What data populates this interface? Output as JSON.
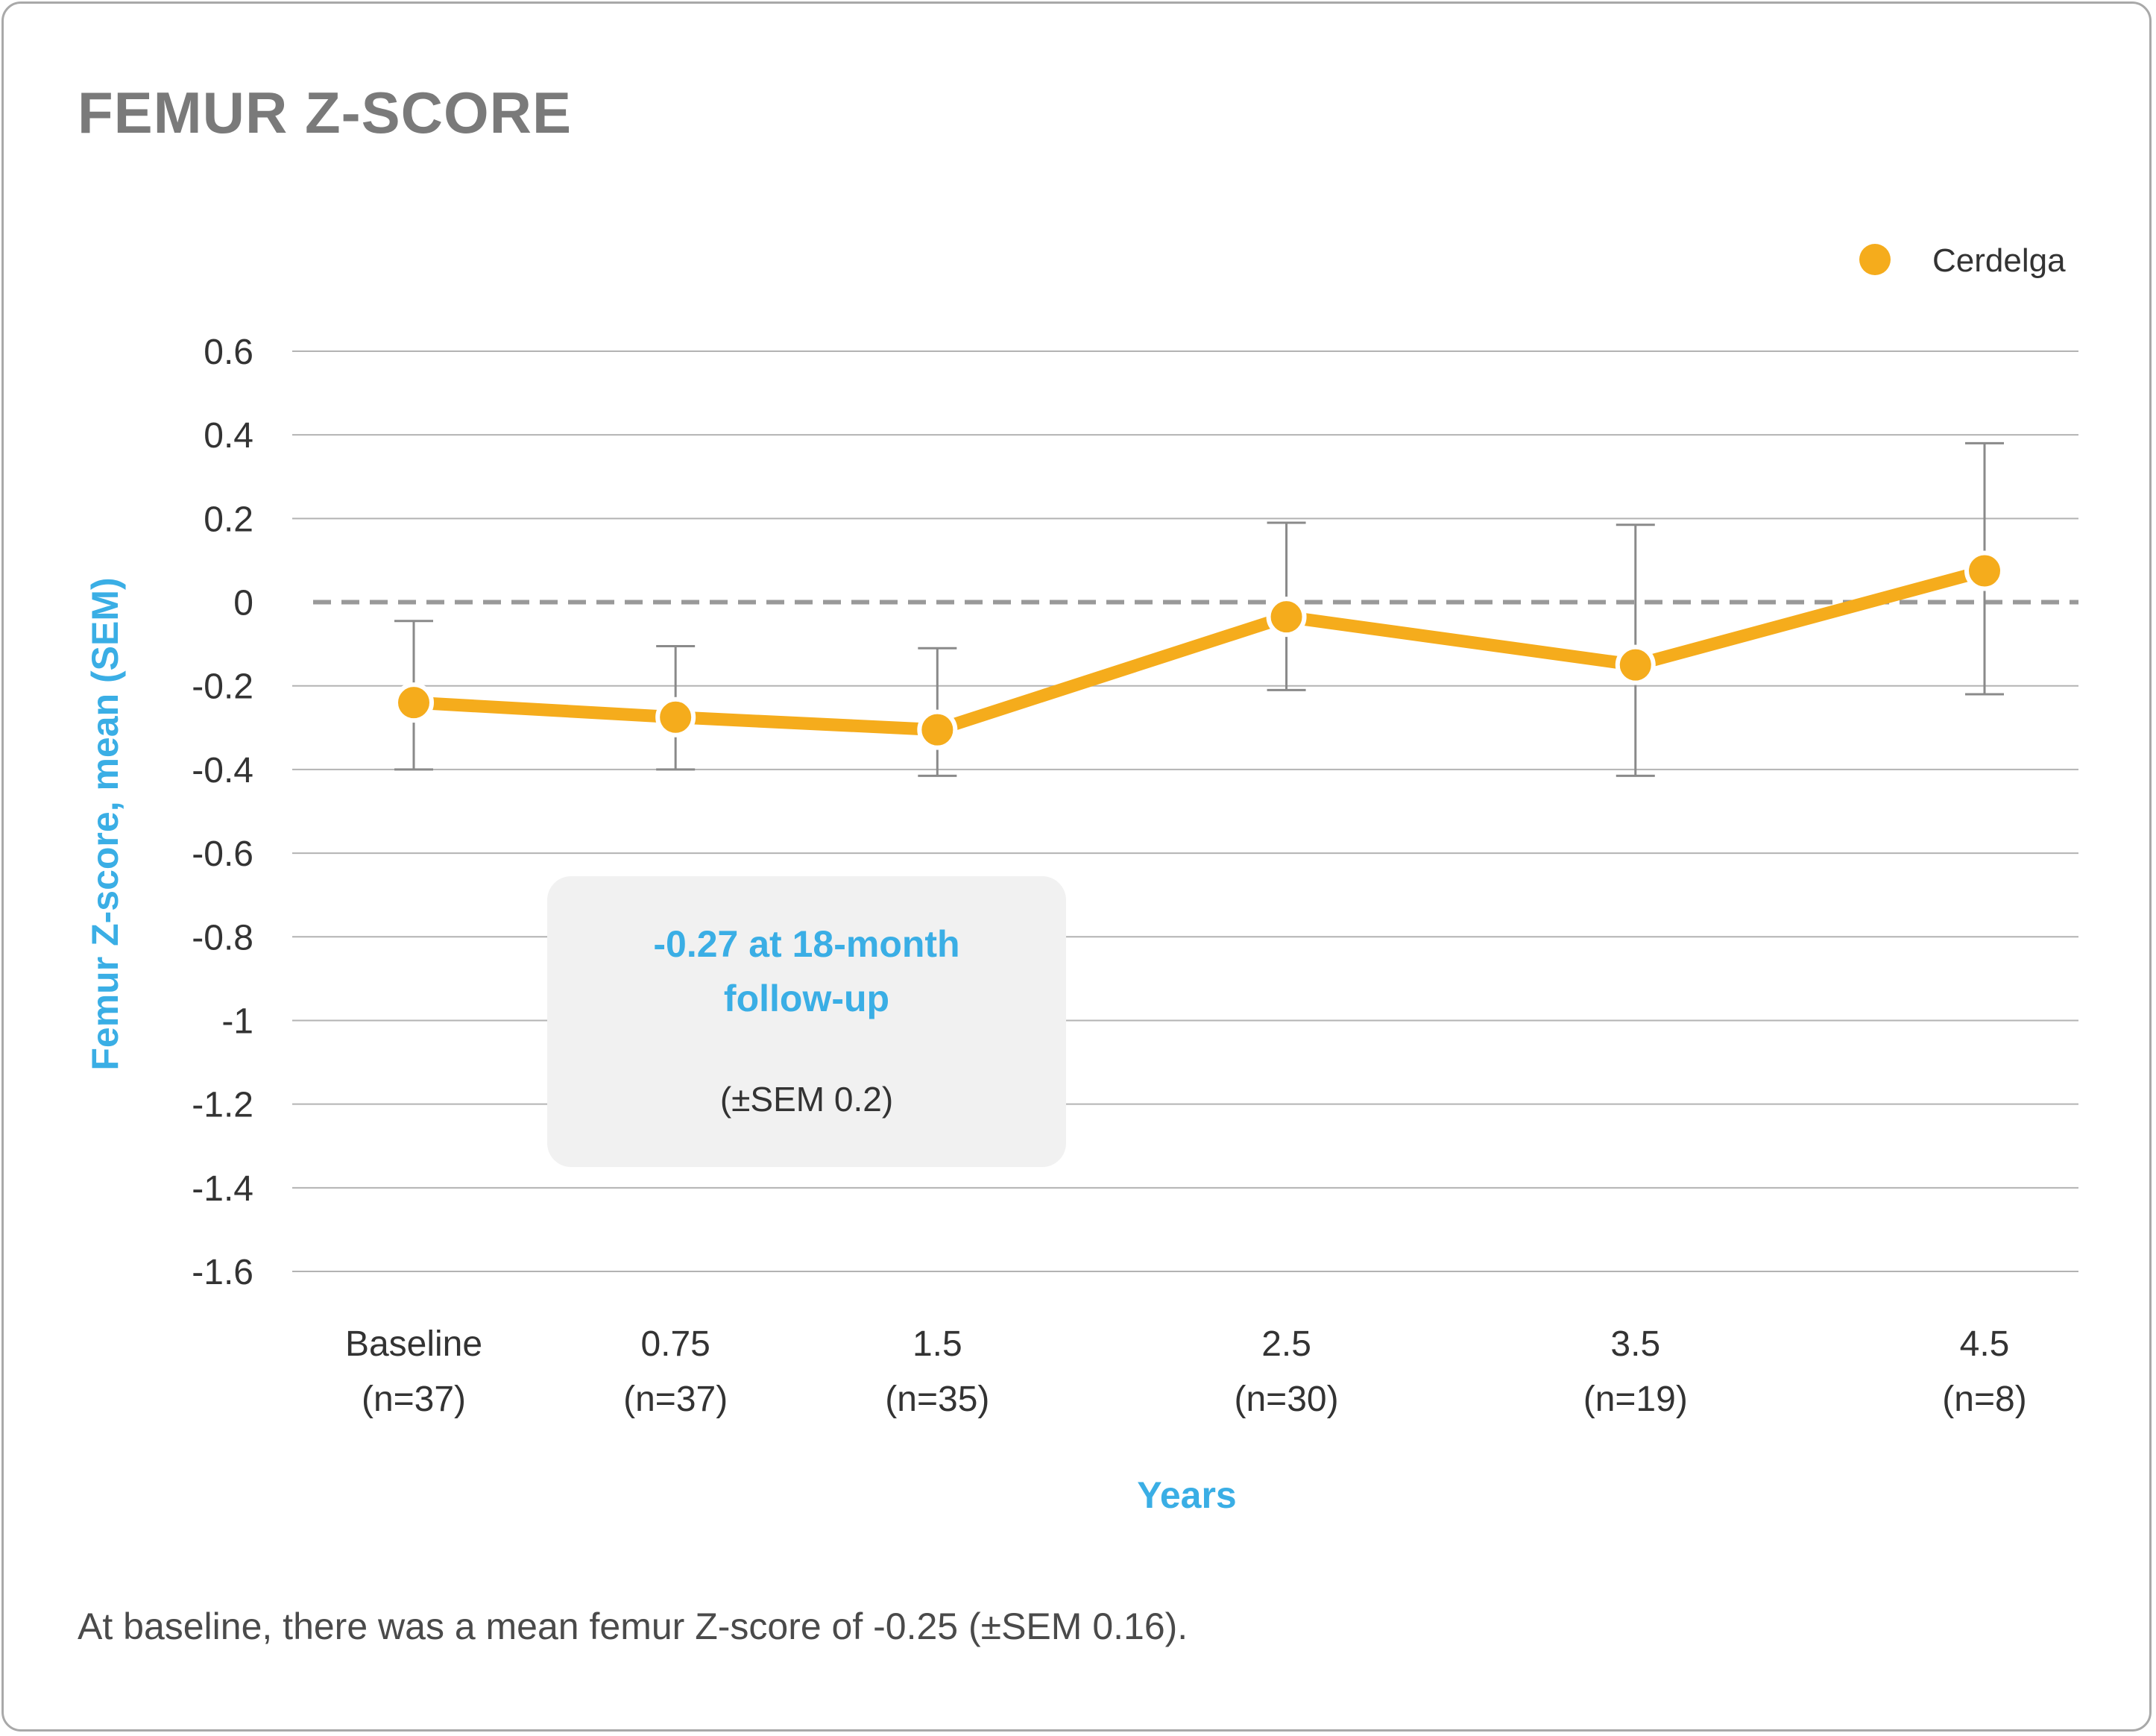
{
  "title": "FEMUR Z-SCORE",
  "footnote": "At baseline, there was a mean femur Z-score of -0.25 (±SEM 0.16).",
  "callout": {
    "headline_line1": "-0.27 at 18-month",
    "headline_line2": "follow-up",
    "sub": "(±SEM 0.2)"
  },
  "colors": {
    "series": "#f5ac1c",
    "axis_label": "#3aaee5",
    "title": "#7a7a7a",
    "grid": "#b3b3b3",
    "errorbar": "#8a8a8a",
    "zero_line": "#999999",
    "callout_bg": "#f1f1f1"
  },
  "chart_data": {
    "type": "line",
    "title": "FEMUR Z-SCORE",
    "xlabel": "Years",
    "ylabel": "Femur Z-score, mean (SEM)",
    "ylim": [
      -1.6,
      0.6
    ],
    "yticks": [
      "0.6",
      "0.4",
      "0.2",
      "0",
      "-0.2",
      "-0.4",
      "-0.6",
      "-0.8",
      "-1",
      "-1.2",
      "-1.4",
      "-1.6"
    ],
    "ytick_values": [
      0.6,
      0.4,
      0.2,
      0,
      -0.2,
      -0.4,
      -0.6,
      -0.8,
      -1,
      -1.2,
      -1.4,
      -1.6
    ],
    "x": [
      0,
      0.75,
      1.5,
      2.5,
      3.5,
      4.5
    ],
    "categories": [
      {
        "label": "Baseline",
        "n": "(n=37)"
      },
      {
        "label": "0.75",
        "n": "(n=37)"
      },
      {
        "label": "1.5",
        "n": "(n=35)"
      },
      {
        "label": "2.5",
        "n": "(n=30)"
      },
      {
        "label": "3.5",
        "n": "(n=19)"
      },
      {
        "label": "4.5",
        "n": "(n=8)"
      }
    ],
    "reference_line": 0,
    "grid": true,
    "legend_position": "top-right",
    "series": [
      {
        "name": "Cerdelga",
        "values": [
          -0.24,
          -0.275,
          -0.305,
          -0.035,
          -0.15,
          0.075
        ],
        "error_low": [
          -0.4,
          -0.4,
          -0.415,
          -0.21,
          -0.415,
          -0.22
        ],
        "error_high": [
          -0.045,
          -0.105,
          -0.11,
          0.19,
          0.185,
          0.38
        ]
      }
    ]
  }
}
